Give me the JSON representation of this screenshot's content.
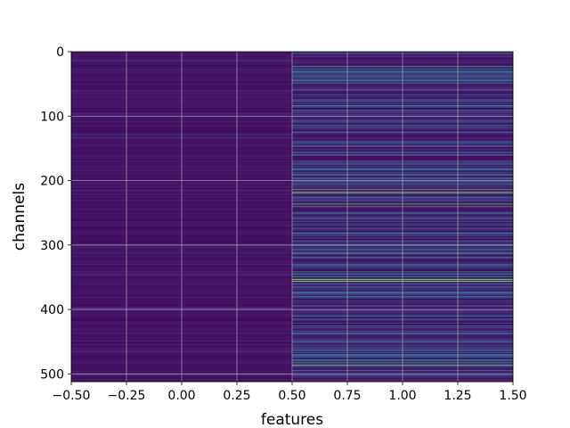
{
  "chart_data": {
    "type": "heatmap",
    "title": "",
    "xlabel": "features",
    "ylabel": "channels",
    "xlim": [
      -0.5,
      1.5
    ],
    "ylim": [
      512,
      0
    ],
    "y_inverted": true,
    "grid": true,
    "colormap": "viridis",
    "columns": [
      {
        "index": 0,
        "description": "uniformly low values (dark purple) across all channels"
      },
      {
        "index": 1,
        "description": "varied values across channels, mostly low with bright teal and yellow bands"
      }
    ],
    "rows": 512,
    "x_ticks": [
      "−0.50",
      "−0.25",
      "0.00",
      "0.25",
      "0.50",
      "0.75",
      "1.00",
      "1.25",
      "1.50"
    ],
    "x_tick_values": [
      -0.5,
      -0.25,
      0.0,
      0.25,
      0.5,
      0.75,
      1.0,
      1.25,
      1.5
    ],
    "y_ticks": [
      "0",
      "100",
      "200",
      "300",
      "400",
      "500"
    ],
    "y_tick_values": [
      0,
      100,
      200,
      300,
      400,
      500
    ],
    "bright_channels_column_1": [
      {
        "channel": 22,
        "level": 0.6
      },
      {
        "channel": 26,
        "level": 0.55
      },
      {
        "channel": 30,
        "level": 0.5
      },
      {
        "channel": 37,
        "level": 0.45
      },
      {
        "channel": 44,
        "level": 0.5
      },
      {
        "channel": 48,
        "level": 0.55
      },
      {
        "channel": 66,
        "level": 0.4
      },
      {
        "channel": 83,
        "level": 0.55
      },
      {
        "channel": 90,
        "level": 0.45
      },
      {
        "channel": 100,
        "level": 0.4
      },
      {
        "channel": 114,
        "level": 0.45
      },
      {
        "channel": 125,
        "level": 0.4
      },
      {
        "channel": 142,
        "level": 0.45
      },
      {
        "channel": 160,
        "level": 0.4
      },
      {
        "channel": 174,
        "level": 0.5
      },
      {
        "channel": 182,
        "level": 0.55
      },
      {
        "channel": 190,
        "level": 0.45
      },
      {
        "channel": 205,
        "level": 0.5
      },
      {
        "channel": 213,
        "level": 0.7
      },
      {
        "channel": 218,
        "level": 0.9
      },
      {
        "channel": 225,
        "level": 0.45
      },
      {
        "channel": 236,
        "level": 0.75
      },
      {
        "channel": 240,
        "level": 0.6
      },
      {
        "channel": 250,
        "level": 0.45
      },
      {
        "channel": 259,
        "level": 0.5
      },
      {
        "channel": 268,
        "level": 0.45
      },
      {
        "channel": 281,
        "level": 0.4
      },
      {
        "channel": 293,
        "level": 0.5
      },
      {
        "channel": 308,
        "level": 0.5
      },
      {
        "channel": 312,
        "level": 0.65
      },
      {
        "channel": 318,
        "level": 0.45
      },
      {
        "channel": 330,
        "level": 0.4
      },
      {
        "channel": 341,
        "level": 0.55
      },
      {
        "channel": 345,
        "level": 0.6
      },
      {
        "channel": 349,
        "level": 0.5
      },
      {
        "channel": 353,
        "level": 0.8
      },
      {
        "channel": 356,
        "level": 0.9
      },
      {
        "channel": 372,
        "level": 0.4
      },
      {
        "channel": 380,
        "level": 0.45
      },
      {
        "channel": 394,
        "level": 0.45
      },
      {
        "channel": 410,
        "level": 0.4
      },
      {
        "channel": 425,
        "level": 0.45
      },
      {
        "channel": 437,
        "level": 0.45
      },
      {
        "channel": 450,
        "level": 0.4
      },
      {
        "channel": 462,
        "level": 0.5
      },
      {
        "channel": 470,
        "level": 0.55
      },
      {
        "channel": 478,
        "level": 0.45
      },
      {
        "channel": 486,
        "level": 0.85
      },
      {
        "channel": 494,
        "level": 0.5
      },
      {
        "channel": 503,
        "level": 0.45
      }
    ],
    "bright_channels_column_0": [
      {
        "channel": 13,
        "level": 0.18
      },
      {
        "channel": 60,
        "level": 0.16
      },
      {
        "channel": 95,
        "level": 0.15
      },
      {
        "channel": 128,
        "level": 0.2
      },
      {
        "channel": 133,
        "level": 0.18
      },
      {
        "channel": 214,
        "level": 0.16
      },
      {
        "channel": 268,
        "level": 0.15
      },
      {
        "channel": 304,
        "level": 0.16
      },
      {
        "channel": 330,
        "level": 0.16
      },
      {
        "channel": 346,
        "level": 0.18
      },
      {
        "channel": 397,
        "level": 0.16
      },
      {
        "channel": 448,
        "level": 0.15
      },
      {
        "channel": 465,
        "level": 0.16
      },
      {
        "channel": 500,
        "level": 0.15
      }
    ]
  }
}
